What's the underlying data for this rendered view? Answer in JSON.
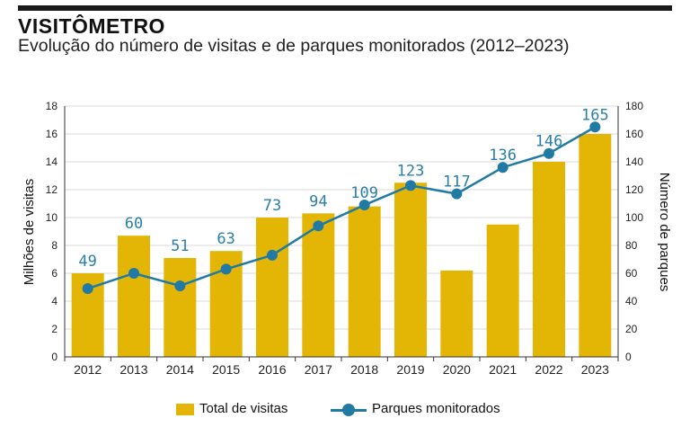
{
  "header": {
    "title": "VISITÔMETRO",
    "subtitle": "Evolução do número de visitas e de parques monitorados (2012–2023)"
  },
  "colors": {
    "bar": "#e3b505",
    "line": "#217aa3",
    "label": "#2a7fa6",
    "grid": "#d9d9d9"
  },
  "chart_data": {
    "type": "bar",
    "categories": [
      "2012",
      "2013",
      "2014",
      "2015",
      "2016",
      "2017",
      "2018",
      "2019",
      "2020",
      "2021",
      "2022",
      "2023"
    ],
    "series": [
      {
        "name": "Total de visitas",
        "type": "bar",
        "axis": "left",
        "values": [
          6.0,
          8.7,
          7.1,
          7.6,
          10.0,
          10.3,
          10.8,
          12.5,
          6.2,
          9.5,
          14.0,
          16.0
        ]
      },
      {
        "name": "Parques monitorados",
        "type": "line",
        "axis": "right",
        "values": [
          49,
          60,
          51,
          63,
          73,
          94,
          109,
          123,
          117,
          136,
          146,
          165
        ]
      }
    ],
    "ylabel_left": "Milhões de visitas",
    "ylabel_right": "Número de parques",
    "ylim_left": [
      0,
      18
    ],
    "ylim_right": [
      0,
      180
    ],
    "yticks_left": [
      "0",
      "2",
      "4",
      "6",
      "8",
      "10",
      "12",
      "14",
      "16",
      "18"
    ],
    "yticks_right": [
      "0",
      "20",
      "40",
      "60",
      "80",
      "100",
      "120",
      "140",
      "160",
      "180"
    ],
    "grid": true,
    "legend_position": "bottom"
  }
}
